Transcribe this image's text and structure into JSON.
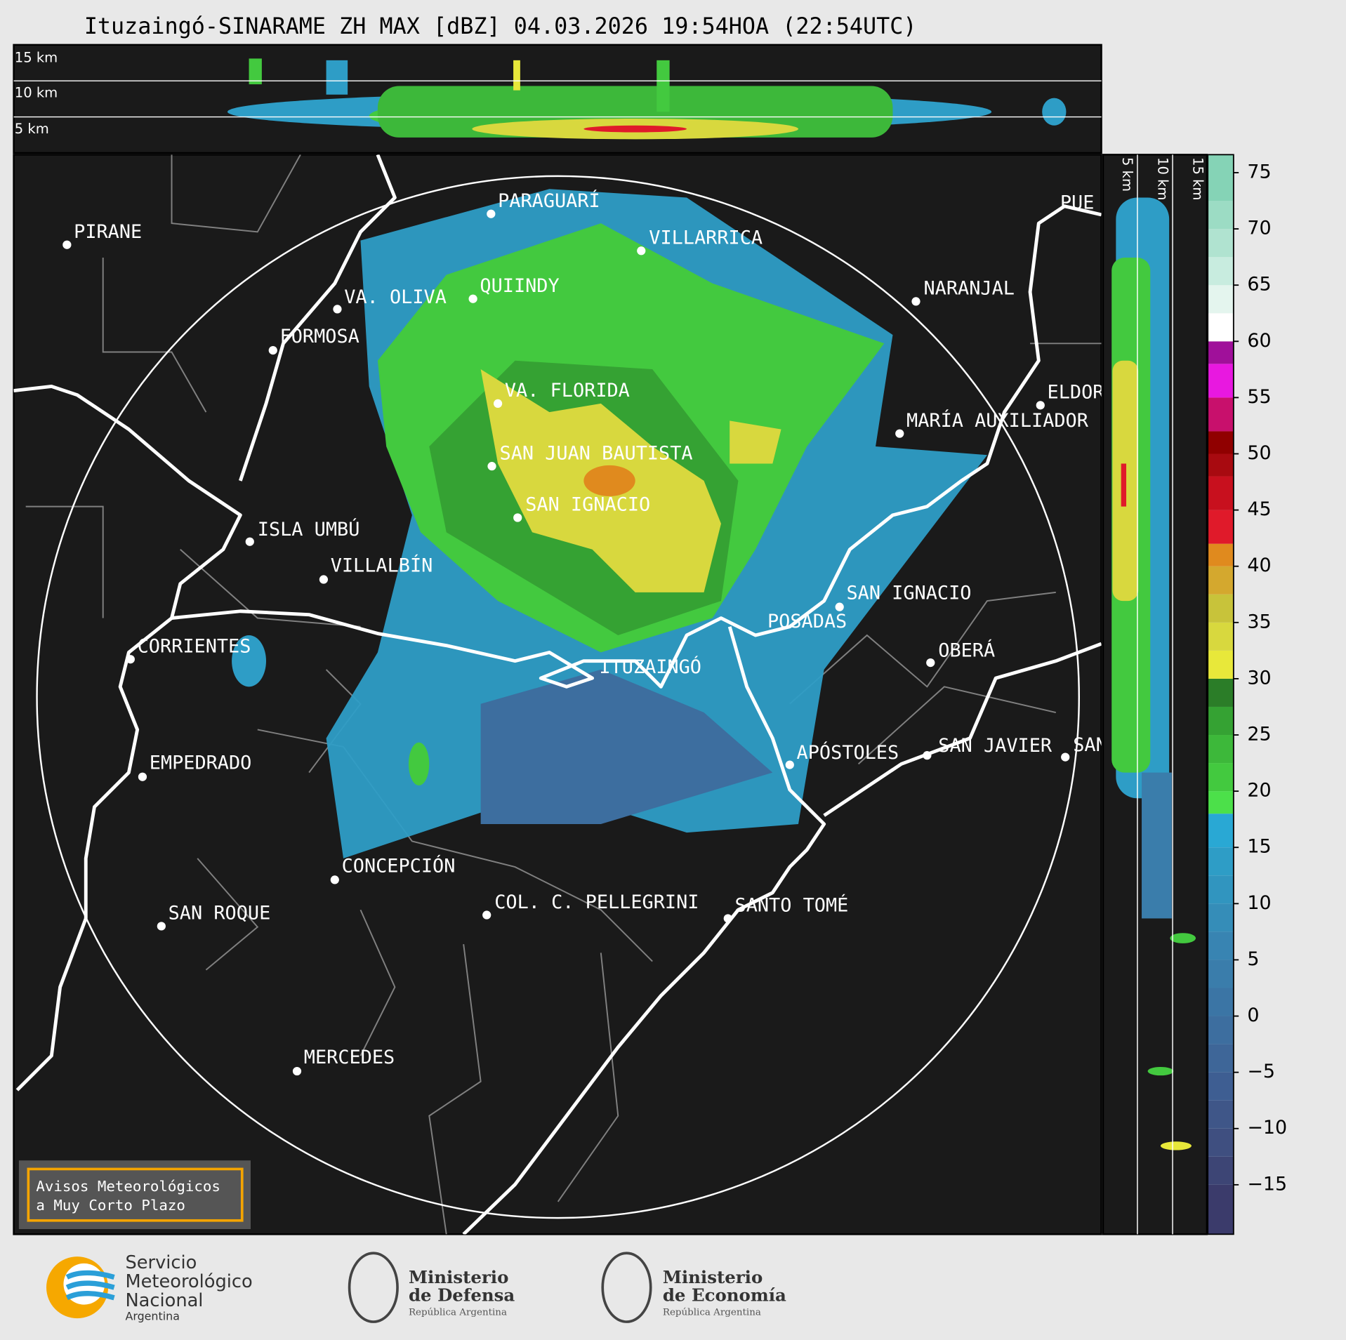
{
  "title": "Ituzaingó-SINARAME ZH MAX [dBZ] 04.03.2026 19:54HOA (22:54UTC)",
  "cross_section": {
    "height_labels": [
      "15 km",
      "10 km",
      "5 km"
    ]
  },
  "side_section": {
    "height_labels": [
      "5 km",
      "10 km",
      "15 km"
    ]
  },
  "map": {
    "places": [
      "PARAGUARÍ",
      "PIRANE",
      "VILLARRICA",
      "VA. OLIVA",
      "QUIINDY",
      "NARANJAL",
      "FORMOSA",
      "PUE",
      "VA. FLORIDA",
      "ELDOR",
      "MARÍA AUXILIADOR",
      "SAN JUAN BAUTISTA",
      "SAN IGNACIO",
      "ISLA UMBÚ",
      "VILLALBÍN",
      "SAN IGNACIO",
      "POSADAS",
      "CORRIENTES",
      "OBERÁ",
      "ITUZAINGÓ",
      "APÓSTOLES",
      "SAN JAVIER",
      "SAN",
      "EMPEDRADO",
      "CONCEPCIÓN",
      "COL. C. PELLEGRINI",
      "SANTO TOMÉ",
      "SAN ROQUE",
      "MERCEDES"
    ]
  },
  "colorbar": {
    "lim": [
      -19.4,
      76.6
    ],
    "ticks": [
      75,
      70,
      65,
      60,
      55,
      50,
      45,
      40,
      35,
      30,
      25,
      20,
      15,
      10,
      5,
      0,
      {
        "value": -5,
        "label": "−5"
      },
      {
        "value": -10,
        "label": "−10"
      },
      {
        "value": -15,
        "label": "−15"
      }
    ],
    "bounds": [
      -19.4,
      -15,
      -12.5,
      -10,
      -7.5,
      -5,
      -2.5,
      0,
      2.5,
      5,
      7.5,
      10,
      12.5,
      15,
      18,
      20,
      22.5,
      25,
      27.5,
      30,
      32.5,
      35,
      37.5,
      40,
      42,
      45,
      48,
      50,
      52,
      55,
      58,
      60,
      62.5,
      65,
      67.5,
      70,
      72.5,
      76.6
    ],
    "colors": [
      "#3b3b6b",
      "#3d4575",
      "#3f4f80",
      "#3f5688",
      "#3e5e92",
      "#3e6698",
      "#3d6e9f",
      "#3b75a5",
      "#3a7dab",
      "#3884b2",
      "#358db8",
      "#3195bf",
      "#2e9dc6",
      "#29a8d4",
      "#4ce04a",
      "#43c93f",
      "#3db83a",
      "#35a233",
      "#2b7d28",
      "#e8e83a",
      "#d8d83e",
      "#c8c33a",
      "#d4a82e",
      "#e08a1e",
      "#e01a2a",
      "#c8101e",
      "#a80a10",
      "#900000",
      "#c8106c",
      "#e818e0",
      "#a0109a",
      "#ffffff",
      "#e4f5ee",
      "#c8ecdf",
      "#b0e3d0",
      "#9cdcc4",
      "#85d3b6"
    ]
  },
  "warning_box": {
    "lines": [
      "Avisos Meteorológicos",
      "a Muy Corto Plazo"
    ]
  },
  "logos": {
    "smn": [
      "Servicio",
      "Meteorológico",
      "Nacional",
      "Argentina"
    ],
    "defensa": [
      "Ministerio",
      "de Defensa",
      "República Argentina"
    ],
    "economia": [
      "Ministerio",
      "de Economía",
      "República Argentina"
    ]
  }
}
